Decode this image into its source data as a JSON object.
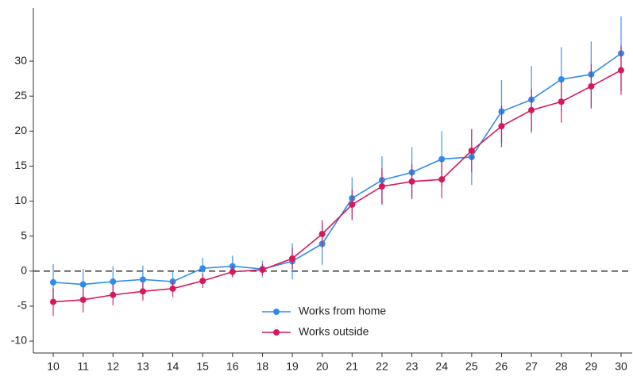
{
  "chart_data": {
    "type": "line",
    "categories": [
      "10",
      "11",
      "12",
      "13",
      "14",
      "15",
      "16",
      "18",
      "19",
      "20",
      "21",
      "22",
      "23",
      "24",
      "25",
      "26",
      "27",
      "28",
      "29",
      "30"
    ],
    "series": [
      {
        "name": "Works from home",
        "color": "#2f8ceb",
        "values": [
          -1.6,
          -1.9,
          -1.5,
          -1.2,
          -1.5,
          0.4,
          0.7,
          0.3,
          1.4,
          3.9,
          10.4,
          13.0,
          14.1,
          16.0,
          16.3,
          22.8,
          24.5,
          27.4,
          28.1,
          31.1
        ],
        "errors": [
          2.6,
          2.2,
          2.2,
          2.0,
          1.5,
          1.5,
          1.5,
          1.2,
          2.6,
          3.0,
          3.0,
          3.4,
          3.6,
          4.0,
          4.0,
          4.5,
          4.8,
          4.6,
          4.7,
          5.3
        ]
      },
      {
        "name": "Works outside",
        "color": "#d41a5c",
        "values": [
          -4.4,
          -4.1,
          -3.4,
          -2.9,
          -2.5,
          -1.4,
          -0.1,
          0.2,
          1.8,
          5.3,
          9.5,
          12.1,
          12.8,
          13.1,
          17.2,
          20.7,
          23.0,
          24.2,
          26.4,
          28.7
        ],
        "errors": [
          2.0,
          1.8,
          1.5,
          1.3,
          1.2,
          1.0,
          0.8,
          0.8,
          1.5,
          2.0,
          2.2,
          2.6,
          2.5,
          2.7,
          3.1,
          3.0,
          3.0,
          3.0,
          3.2,
          3.5
        ]
      }
    ],
    "ylim": [
      -11.7,
      37.6
    ],
    "yticks": [
      -10,
      -5,
      0,
      5,
      10,
      15,
      20,
      25,
      30
    ],
    "reference_line": 0,
    "legend": "lower center",
    "grid": false
  }
}
